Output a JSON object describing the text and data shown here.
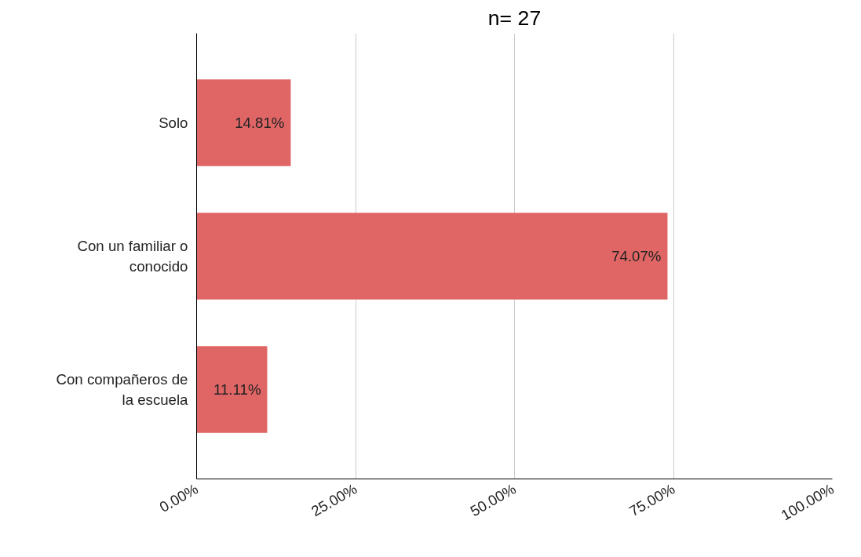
{
  "chart_data": {
    "type": "bar",
    "orientation": "horizontal",
    "title": "n= 27",
    "categories": [
      "Solo",
      "Con un familiar o conocido",
      "Con compañeros de la escuela"
    ],
    "values": [
      14.81,
      74.07,
      11.11
    ],
    "value_labels": [
      "14.81%",
      "74.07%",
      "11.11%"
    ],
    "color": "#e06666",
    "xlim": [
      0,
      100
    ],
    "xticks": [
      {
        "value": 0,
        "label": "0.00%"
      },
      {
        "value": 25,
        "label": "25.00%"
      },
      {
        "value": 50,
        "label": "50.00%"
      },
      {
        "value": 75,
        "label": "75.00%"
      },
      {
        "value": 100,
        "label": "100.00%"
      }
    ],
    "grid": "x"
  }
}
